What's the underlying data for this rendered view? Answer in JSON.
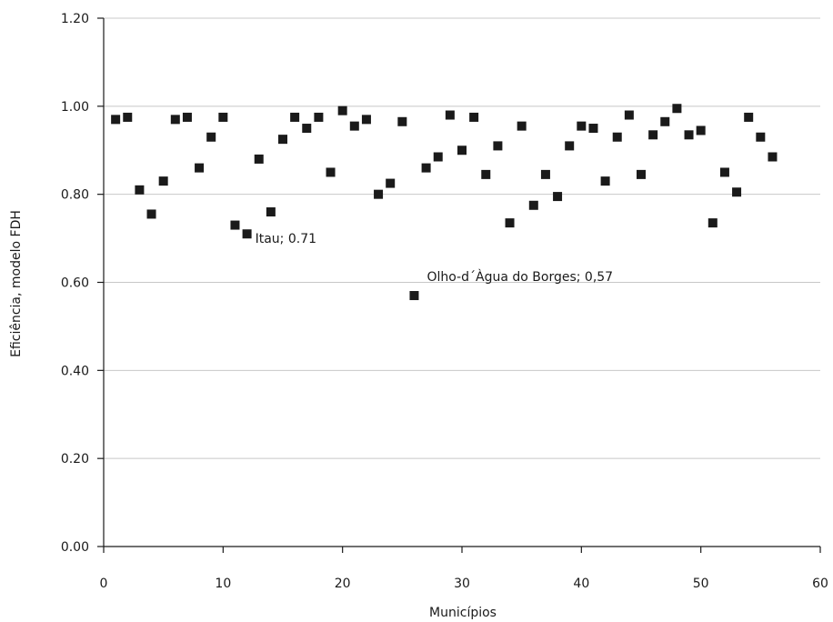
{
  "chart_data": {
    "type": "scatter",
    "title": "",
    "xlabel": "Municípios",
    "ylabel": "Eficiência, modelo FDH",
    "xlim": [
      0,
      60
    ],
    "ylim": [
      0,
      1.2
    ],
    "x_ticks": [
      "0",
      "10",
      "20",
      "30",
      "40",
      "50",
      "60"
    ],
    "y_ticks": [
      "0.00",
      "0.20",
      "0.40",
      "0.60",
      "0.80",
      "1.00",
      "1.20"
    ],
    "grid": "horizontal",
    "marker": "square",
    "point_color": "#1a1a1a",
    "points": [
      {
        "x": 1,
        "y": 0.97
      },
      {
        "x": 2,
        "y": 0.975
      },
      {
        "x": 3,
        "y": 0.81
      },
      {
        "x": 4,
        "y": 0.755
      },
      {
        "x": 5,
        "y": 0.83
      },
      {
        "x": 6,
        "y": 0.97
      },
      {
        "x": 7,
        "y": 0.975
      },
      {
        "x": 8,
        "y": 0.86
      },
      {
        "x": 9,
        "y": 0.93
      },
      {
        "x": 10,
        "y": 0.975
      },
      {
        "x": 11,
        "y": 0.73
      },
      {
        "x": 12,
        "y": 0.71
      },
      {
        "x": 13,
        "y": 0.88
      },
      {
        "x": 14,
        "y": 0.76
      },
      {
        "x": 15,
        "y": 0.925
      },
      {
        "x": 16,
        "y": 0.975
      },
      {
        "x": 17,
        "y": 0.95
      },
      {
        "x": 18,
        "y": 0.975
      },
      {
        "x": 19,
        "y": 0.85
      },
      {
        "x": 20,
        "y": 0.99
      },
      {
        "x": 21,
        "y": 0.955
      },
      {
        "x": 22,
        "y": 0.97
      },
      {
        "x": 23,
        "y": 0.8
      },
      {
        "x": 24,
        "y": 0.825
      },
      {
        "x": 25,
        "y": 0.965
      },
      {
        "x": 26,
        "y": 0.57
      },
      {
        "x": 27,
        "y": 0.86
      },
      {
        "x": 28,
        "y": 0.885
      },
      {
        "x": 29,
        "y": 0.98
      },
      {
        "x": 30,
        "y": 0.9
      },
      {
        "x": 31,
        "y": 0.975
      },
      {
        "x": 32,
        "y": 0.845
      },
      {
        "x": 33,
        "y": 0.91
      },
      {
        "x": 34,
        "y": 0.735
      },
      {
        "x": 35,
        "y": 0.955
      },
      {
        "x": 36,
        "y": 0.775
      },
      {
        "x": 37,
        "y": 0.845
      },
      {
        "x": 38,
        "y": 0.795
      },
      {
        "x": 39,
        "y": 0.91
      },
      {
        "x": 40,
        "y": 0.955
      },
      {
        "x": 41,
        "y": 0.95
      },
      {
        "x": 42,
        "y": 0.83
      },
      {
        "x": 43,
        "y": 0.93
      },
      {
        "x": 44,
        "y": 0.98
      },
      {
        "x": 45,
        "y": 0.845
      },
      {
        "x": 46,
        "y": 0.935
      },
      {
        "x": 47,
        "y": 0.965
      },
      {
        "x": 48,
        "y": 0.995
      },
      {
        "x": 49,
        "y": 0.935
      },
      {
        "x": 50,
        "y": 0.945
      },
      {
        "x": 51,
        "y": 0.735
      },
      {
        "x": 52,
        "y": 0.85
      },
      {
        "x": 53,
        "y": 0.805
      },
      {
        "x": 54,
        "y": 0.975
      },
      {
        "x": 55,
        "y": 0.93
      },
      {
        "x": 56,
        "y": 0.885
      }
    ],
    "annotations": [
      {
        "text": "Itau; 0.71",
        "x": 12,
        "y": 0.71
      },
      {
        "text": "Olho-d´Àgua do Borges; 0,57",
        "x": 26,
        "y": 0.57
      }
    ]
  }
}
